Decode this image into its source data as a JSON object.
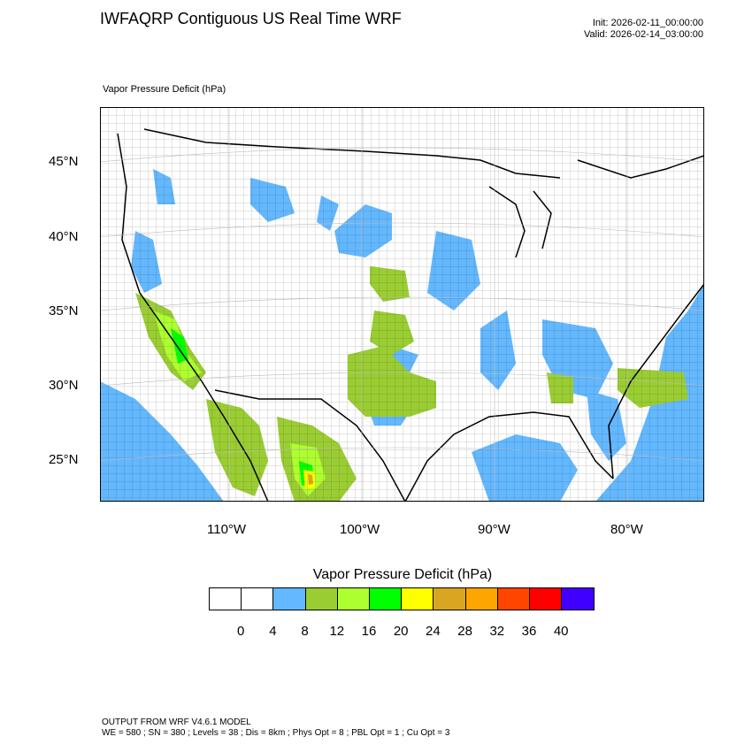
{
  "title": "IWFAQRP Contiguous US Real Time WRF",
  "init_line": "Init: 2026-02-11_00:00:00",
  "valid_line": "Valid: 2026-02-14_03:00:00",
  "field_label": "Vapor Pressure Deficit   (hPa)",
  "lat_labels": [
    "45°N",
    "40°N",
    "35°N",
    "30°N",
    "25°N"
  ],
  "lon_labels": [
    "110°W",
    "100°W",
    "90°W",
    "80°W"
  ],
  "legend": {
    "title": "Vapor Pressure Deficit  (hPa)",
    "colors": [
      "#ffffff",
      "#ffffff",
      "#63b8ff",
      "#9acd32",
      "#adff2f",
      "#00ff00",
      "#ffff00",
      "#daa520",
      "#ffa500",
      "#ff4500",
      "#ff0000",
      "#4000ff"
    ],
    "ticks": [
      "0",
      "4",
      "8",
      "12",
      "16",
      "20",
      "24",
      "28",
      "32",
      "36",
      "40"
    ]
  },
  "footer": {
    "line1": "OUTPUT FROM WRF V4.6.1 MODEL",
    "line2": "WE = 580 ; SN = 380 ; Levels = 38 ; Dis = 8km ; Phys Opt = 8 ; PBL Opt = 1 ; Cu Opt = 3"
  }
}
